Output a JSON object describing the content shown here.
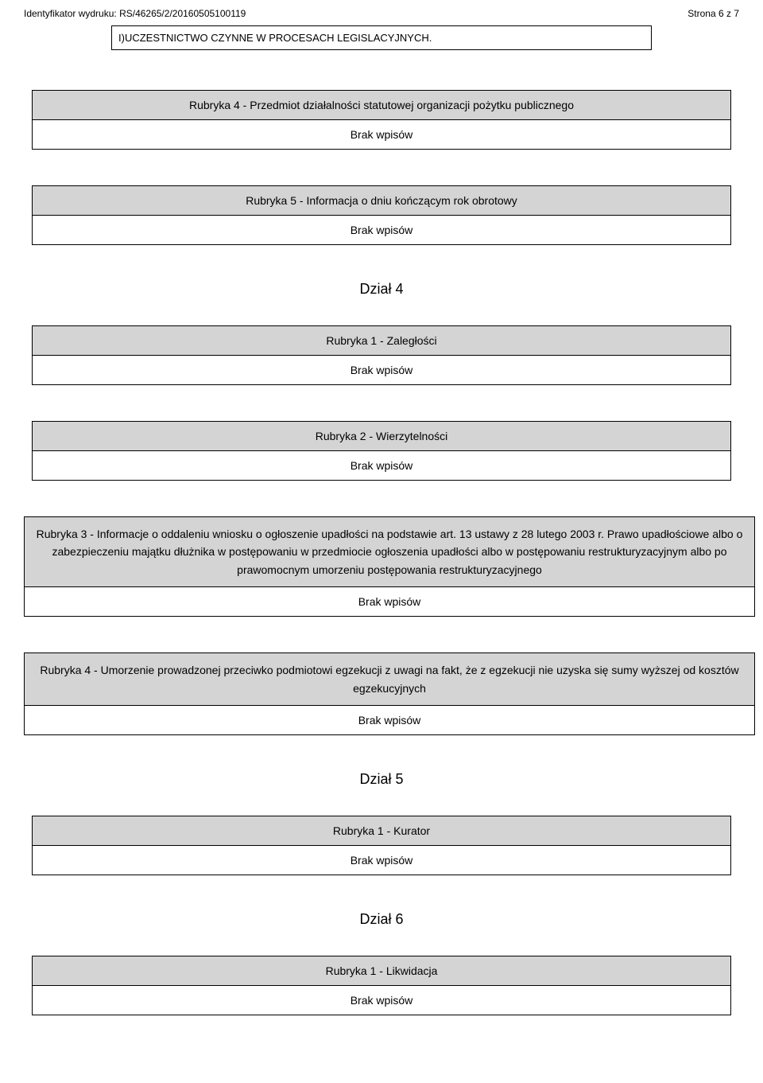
{
  "header": {
    "identifier_label": "Identyfikator wydruku:",
    "identifier_value": "RS/46265/2/20160505100119",
    "page_info": "Strona 6 z 7"
  },
  "top_box": {
    "text": "I)UCZESTNICTWO CZYNNE W PROCESACH LEGISLACYJNYCH."
  },
  "blocks": [
    {
      "title": "Rubryka 4 - Przedmiot działalności statutowej organizacji pożytku publicznego",
      "body": "Brak wpisów"
    },
    {
      "title": "Rubryka 5 - Informacja o dniu kończącym rok obrotowy",
      "body": "Brak wpisów"
    }
  ],
  "dzial4": "Dział 4",
  "blocks2": [
    {
      "title": "Rubryka 1 - Zaległości",
      "body": "Brak wpisów"
    },
    {
      "title": "Rubryka 2 - Wierzytelności",
      "body": "Brak wpisów"
    }
  ],
  "wide1": {
    "title": "Rubryka 3 - Informacje o oddaleniu wniosku o ogłoszenie upadłości na podstawie art. 13 ustawy z 28 lutego 2003 r. Prawo upadłościowe albo o zabezpieczeniu majątku dłużnika w postępowaniu w przedmiocie ogłoszenia upadłości albo w postępowaniu restrukturyzacyjnym albo po prawomocnym umorzeniu postępowania restrukturyzacyjnego",
    "body": "Brak wpisów"
  },
  "wide2": {
    "title": "Rubryka 4 - Umorzenie prowadzonej przeciwko podmiotowi egzekucji z uwagi na fakt, że z egzekucji nie uzyska się sumy wyższej od kosztów egzekucyjnych",
    "body": "Brak wpisów"
  },
  "dzial5": "Dział 5",
  "block5": {
    "title": "Rubryka 1 - Kurator",
    "body": "Brak wpisów"
  },
  "dzial6": "Dział 6",
  "block6": {
    "title": "Rubryka 1 - Likwidacja",
    "body": "Brak wpisów"
  },
  "colors": {
    "header_bg": "#d4d4d4",
    "body_bg": "#ffffff",
    "border": "#000000",
    "text": "#000000"
  }
}
